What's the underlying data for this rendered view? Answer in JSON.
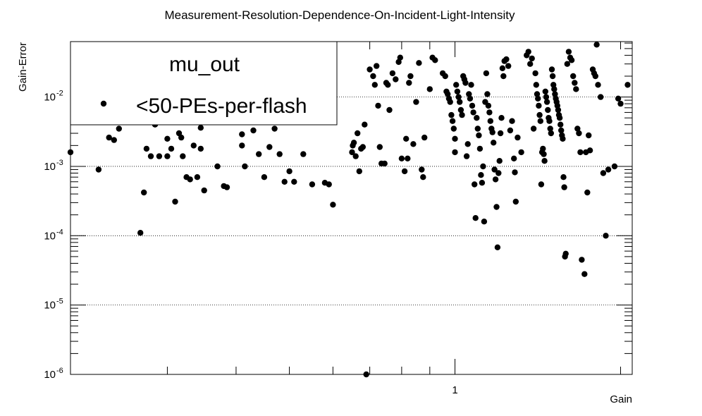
{
  "chart_data": {
    "type": "scatter",
    "title": "Measurement-Resolution-Dependence-On-Incident-Light-Intensity",
    "xlabel": "Gain",
    "ylabel": "Gain-Error",
    "x_scale": "log",
    "y_scale": "log",
    "xlim": [
      0.2,
      2.1
    ],
    "ylim": [
      1e-06,
      0.063
    ],
    "x_tick_labels": [
      {
        "value": 1,
        "label": "1"
      }
    ],
    "y_tick_labels": [
      {
        "value": 1e-06,
        "base": "10",
        "exp": "-6"
      },
      {
        "value": 1e-05,
        "base": "10",
        "exp": "-5"
      },
      {
        "value": 0.0001,
        "base": "10",
        "exp": "-4"
      },
      {
        "value": 0.001,
        "base": "10",
        "exp": "-3"
      },
      {
        "value": 0.01,
        "base": "10",
        "exp": "-2"
      }
    ],
    "grid": "y-major dotted",
    "legend": {
      "position": "top-left",
      "header": "mu_out",
      "entries": [
        {
          "label": "<50-PEs-per-flash",
          "marker": "circle"
        }
      ]
    },
    "series": [
      {
        "name": "<50-PEs-per-flash",
        "color": "#000000",
        "points": [
          [
            0.2,
            0.0016
          ],
          [
            0.225,
            0.0009
          ],
          [
            0.235,
            0.0026
          ],
          [
            0.24,
            0.0024
          ],
          [
            0.245,
            0.0035
          ],
          [
            0.26,
            0.005
          ],
          [
            0.268,
            0.00011
          ],
          [
            0.272,
            0.00042
          ],
          [
            0.275,
            0.0018
          ],
          [
            0.28,
            0.0014
          ],
          [
            0.285,
            0.004
          ],
          [
            0.29,
            0.0014
          ],
          [
            0.3,
            0.0014
          ],
          [
            0.3,
            0.0025
          ],
          [
            0.305,
            0.0018
          ],
          [
            0.31,
            0.00031
          ],
          [
            0.315,
            0.003
          ],
          [
            0.318,
            0.0026
          ],
          [
            0.32,
            0.0014
          ],
          [
            0.325,
            0.0007
          ],
          [
            0.33,
            0.00065
          ],
          [
            0.335,
            0.002
          ],
          [
            0.34,
            0.0007
          ],
          [
            0.345,
            0.0018
          ],
          [
            0.35,
            0.00045
          ],
          [
            0.345,
            0.0036
          ],
          [
            0.37,
            0.001
          ],
          [
            0.38,
            0.00052
          ],
          [
            0.385,
            0.0005
          ],
          [
            0.41,
            0.0029
          ],
          [
            0.41,
            0.002
          ],
          [
            0.415,
            0.001
          ],
          [
            0.43,
            0.0033
          ],
          [
            0.44,
            0.0015
          ],
          [
            0.45,
            0.0007
          ],
          [
            0.46,
            0.0019
          ],
          [
            0.47,
            0.0035
          ],
          [
            0.48,
            0.0015
          ],
          [
            0.49,
            0.0006
          ],
          [
            0.5,
            0.00085
          ],
          [
            0.51,
            0.0006
          ],
          [
            0.53,
            0.0015
          ],
          [
            0.55,
            0.00055
          ],
          [
            0.58,
            0.00058
          ],
          [
            0.59,
            0.00055
          ],
          [
            0.6,
            0.00028
          ],
          [
            0.65,
            0.0016
          ],
          [
            0.652,
            0.002
          ],
          [
            0.655,
            0.0022
          ],
          [
            0.66,
            0.0014
          ],
          [
            0.665,
            0.003
          ],
          [
            0.67,
            0.00085
          ],
          [
            0.675,
            0.0018
          ],
          [
            0.68,
            0.0019
          ],
          [
            0.685,
            0.004
          ],
          [
            0.69,
            1e-06
          ],
          [
            0.7,
            0.025
          ],
          [
            0.71,
            0.02
          ],
          [
            0.715,
            0.015
          ],
          [
            0.72,
            0.028
          ],
          [
            0.725,
            0.0075
          ],
          [
            0.73,
            0.0019
          ],
          [
            0.735,
            0.0011
          ],
          [
            0.745,
            0.0011
          ],
          [
            0.75,
            0.016
          ],
          [
            0.755,
            0.015
          ],
          [
            0.76,
            0.0065
          ],
          [
            0.77,
            0.022
          ],
          [
            0.78,
            0.018
          ],
          [
            0.79,
            0.032
          ],
          [
            0.795,
            0.037
          ],
          [
            0.8,
            0.0013
          ],
          [
            0.81,
            0.00085
          ],
          [
            0.815,
            0.0025
          ],
          [
            0.82,
            0.0013
          ],
          [
            0.825,
            0.016
          ],
          [
            0.83,
            0.02
          ],
          [
            0.84,
            0.0021
          ],
          [
            0.85,
            0.0085
          ],
          [
            0.86,
            0.031
          ],
          [
            0.87,
            0.0009
          ],
          [
            0.875,
            0.0007
          ],
          [
            0.88,
            0.0026
          ],
          [
            0.9,
            0.013
          ],
          [
            0.91,
            0.037
          ],
          [
            0.92,
            0.034
          ],
          [
            0.95,
            0.022
          ],
          [
            0.96,
            0.02
          ],
          [
            0.965,
            0.012
          ],
          [
            0.97,
            0.011
          ],
          [
            0.975,
            0.0095
          ],
          [
            0.98,
            0.0085
          ],
          [
            0.985,
            0.0055
          ],
          [
            0.99,
            0.0045
          ],
          [
            0.995,
            0.0035
          ],
          [
            1.0,
            0.0025
          ],
          [
            1.0,
            0.0016
          ],
          [
            1.005,
            0.015
          ],
          [
            1.01,
            0.012
          ],
          [
            1.015,
            0.01
          ],
          [
            1.02,
            0.0085
          ],
          [
            1.025,
            0.0065
          ],
          [
            1.03,
            0.0055
          ],
          [
            1.035,
            0.02
          ],
          [
            1.04,
            0.018
          ],
          [
            1.045,
            0.016
          ],
          [
            1.05,
            0.0014
          ],
          [
            1.055,
            0.0021
          ],
          [
            1.06,
            0.011
          ],
          [
            1.065,
            0.0095
          ],
          [
            1.07,
            0.015
          ],
          [
            1.075,
            0.0075
          ],
          [
            1.08,
            0.006
          ],
          [
            1.085,
            0.00055
          ],
          [
            1.09,
            0.00018
          ],
          [
            1.095,
            0.005
          ],
          [
            1.1,
            0.0035
          ],
          [
            1.105,
            0.0028
          ],
          [
            1.11,
            0.0018
          ],
          [
            1.115,
            0.00075
          ],
          [
            1.12,
            0.00058
          ],
          [
            1.125,
            0.001
          ],
          [
            1.13,
            0.00016
          ],
          [
            1.135,
            0.0085
          ],
          [
            1.14,
            0.022
          ],
          [
            1.145,
            0.011
          ],
          [
            1.15,
            0.0075
          ],
          [
            1.155,
            0.006
          ],
          [
            1.16,
            0.0045
          ],
          [
            1.165,
            0.0035
          ],
          [
            1.17,
            0.0031
          ],
          [
            1.175,
            0.0022
          ],
          [
            1.18,
            0.0009
          ],
          [
            1.185,
            0.00065
          ],
          [
            1.19,
            0.00026
          ],
          [
            1.195,
            6.8e-05
          ],
          [
            1.2,
            0.0008
          ],
          [
            1.205,
            0.0012
          ],
          [
            1.21,
            0.003
          ],
          [
            1.215,
            0.005
          ],
          [
            1.22,
            0.026
          ],
          [
            1.225,
            0.02
          ],
          [
            1.23,
            0.033
          ],
          [
            1.24,
            0.035
          ],
          [
            1.25,
            0.028
          ],
          [
            1.26,
            0.0033
          ],
          [
            1.27,
            0.0045
          ],
          [
            1.28,
            0.0013
          ],
          [
            1.285,
            0.00082
          ],
          [
            1.29,
            0.00031
          ],
          [
            1.3,
            0.0026
          ],
          [
            1.32,
            0.0016
          ],
          [
            1.35,
            0.04
          ],
          [
            1.36,
            0.045
          ],
          [
            1.37,
            0.03
          ],
          [
            1.38,
            0.036
          ],
          [
            1.39,
            0.0035
          ],
          [
            1.4,
            0.022
          ],
          [
            1.405,
            0.015
          ],
          [
            1.41,
            0.011
          ],
          [
            1.415,
            0.0095
          ],
          [
            1.42,
            0.0075
          ],
          [
            1.425,
            0.0055
          ],
          [
            1.43,
            0.0045
          ],
          [
            1.435,
            0.00055
          ],
          [
            1.44,
            0.0016
          ],
          [
            1.445,
            0.0018
          ],
          [
            1.45,
            0.0015
          ],
          [
            1.455,
            0.0012
          ],
          [
            1.46,
            0.012
          ],
          [
            1.465,
            0.01
          ],
          [
            1.47,
            0.0085
          ],
          [
            1.475,
            0.0065
          ],
          [
            1.48,
            0.005
          ],
          [
            1.485,
            0.0045
          ],
          [
            1.49,
            0.0035
          ],
          [
            1.495,
            0.003
          ],
          [
            1.5,
            0.025
          ],
          [
            1.505,
            0.02
          ],
          [
            1.51,
            0.015
          ],
          [
            1.515,
            0.013
          ],
          [
            1.52,
            0.011
          ],
          [
            1.525,
            0.0095
          ],
          [
            1.53,
            0.0085
          ],
          [
            1.535,
            0.0075
          ],
          [
            1.54,
            0.0065
          ],
          [
            1.545,
            0.0055
          ],
          [
            1.55,
            0.005
          ],
          [
            1.555,
            0.004
          ],
          [
            1.56,
            0.0033
          ],
          [
            1.565,
            0.0028
          ],
          [
            1.57,
            0.0025
          ],
          [
            1.575,
            0.0007
          ],
          [
            1.58,
            0.0005
          ],
          [
            1.585,
            5e-05
          ],
          [
            1.59,
            5.5e-05
          ],
          [
            1.6,
            0.03
          ],
          [
            1.61,
            0.045
          ],
          [
            1.62,
            0.037
          ],
          [
            1.63,
            0.034
          ],
          [
            1.64,
            0.02
          ],
          [
            1.65,
            0.016
          ],
          [
            1.66,
            0.013
          ],
          [
            1.67,
            0.0035
          ],
          [
            1.68,
            0.003
          ],
          [
            1.69,
            0.0016
          ],
          [
            1.7,
            4.5e-05
          ],
          [
            1.72,
            2.8e-05
          ],
          [
            1.73,
            0.0016
          ],
          [
            1.74,
            0.00042
          ],
          [
            1.75,
            0.0028
          ],
          [
            1.76,
            0.0017
          ],
          [
            1.78,
            0.025
          ],
          [
            1.79,
            0.022
          ],
          [
            1.8,
            0.02
          ],
          [
            1.81,
            0.057
          ],
          [
            1.82,
            0.015
          ],
          [
            1.84,
            0.01
          ],
          [
            1.86,
            0.0008
          ],
          [
            1.88,
            0.0001
          ],
          [
            1.9,
            0.0009
          ],
          [
            1.95,
            0.001
          ],
          [
            1.98,
            0.0095
          ],
          [
            2.0,
            0.008
          ],
          [
            2.06,
            0.015
          ]
        ]
      }
    ]
  }
}
